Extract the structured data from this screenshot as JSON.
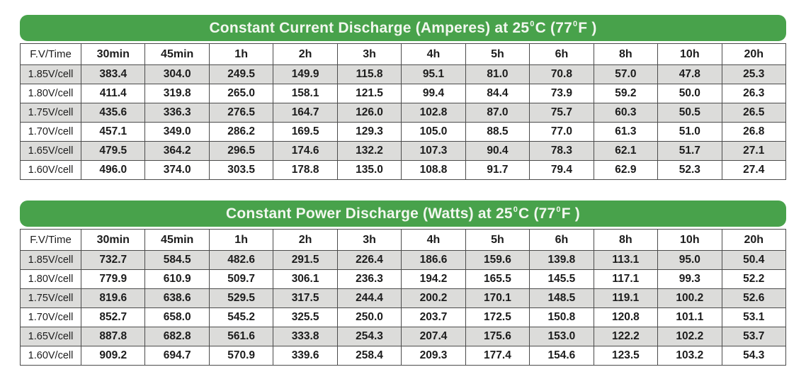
{
  "colors": {
    "title_bar_green": "#48a24b",
    "title_text": "#f2f7ef",
    "row_stripe_gray": "#dcdcda",
    "row_plain": "#ffffff",
    "border_gray": "#4b4b4b",
    "cell_text": "#1c1c1c"
  },
  "tables": [
    {
      "title_parts": {
        "p1": "Constant Current Discharge (Amperes) at 25",
        "sup1": "0",
        "p2": "C (77",
        "sup2": "0",
        "p3": "F )"
      },
      "columns": [
        "F.V/Time",
        "30min",
        "45min",
        "1h",
        "2h",
        "3h",
        "4h",
        "5h",
        "6h",
        "8h",
        "10h",
        "20h"
      ],
      "rows": [
        {
          "label": "1.85V/cell",
          "values": [
            "383.4",
            "304.0",
            "249.5",
            "149.9",
            "115.8",
            "95.1",
            "81.0",
            "70.8",
            "57.0",
            "47.8",
            "25.3"
          ]
        },
        {
          "label": "1.80V/cell",
          "values": [
            "411.4",
            "319.8",
            "265.0",
            "158.1",
            "121.5",
            "99.4",
            "84.4",
            "73.9",
            "59.2",
            "50.0",
            "26.3"
          ]
        },
        {
          "label": "1.75V/cell",
          "values": [
            "435.6",
            "336.3",
            "276.5",
            "164.7",
            "126.0",
            "102.8",
            "87.0",
            "75.7",
            "60.3",
            "50.5",
            "26.5"
          ]
        },
        {
          "label": "1.70V/cell",
          "values": [
            "457.1",
            "349.0",
            "286.2",
            "169.5",
            "129.3",
            "105.0",
            "88.5",
            "77.0",
            "61.3",
            "51.0",
            "26.8"
          ]
        },
        {
          "label": "1.65V/cell",
          "values": [
            "479.5",
            "364.2",
            "296.5",
            "174.6",
            "132.2",
            "107.3",
            "90.4",
            "78.3",
            "62.1",
            "51.7",
            "27.1"
          ]
        },
        {
          "label": "1.60V/cell",
          "values": [
            "496.0",
            "374.0",
            "303.5",
            "178.8",
            "135.0",
            "108.8",
            "91.7",
            "79.4",
            "62.9",
            "52.3",
            "27.4"
          ]
        }
      ]
    },
    {
      "title_parts": {
        "p1": "Constant Power Discharge (Watts) at 25",
        "sup1": "0",
        "p2": "C (77",
        "sup2": "0",
        "p3": "F )"
      },
      "columns": [
        "F.V/Time",
        "30min",
        "45min",
        "1h",
        "2h",
        "3h",
        "4h",
        "5h",
        "6h",
        "8h",
        "10h",
        "20h"
      ],
      "rows": [
        {
          "label": "1.85V/cell",
          "values": [
            "732.7",
            "584.5",
            "482.6",
            "291.5",
            "226.4",
            "186.6",
            "159.6",
            "139.8",
            "113.1",
            "95.0",
            "50.4"
          ]
        },
        {
          "label": "1.80V/cell",
          "values": [
            "779.9",
            "610.9",
            "509.7",
            "306.1",
            "236.3",
            "194.2",
            "165.5",
            "145.5",
            "117.1",
            "99.3",
            "52.2"
          ]
        },
        {
          "label": "1.75V/cell",
          "values": [
            "819.6",
            "638.6",
            "529.5",
            "317.5",
            "244.4",
            "200.2",
            "170.1",
            "148.5",
            "119.1",
            "100.2",
            "52.6"
          ]
        },
        {
          "label": "1.70V/cell",
          "values": [
            "852.7",
            "658.0",
            "545.2",
            "325.5",
            "250.0",
            "203.7",
            "172.5",
            "150.8",
            "120.8",
            "101.1",
            "53.1"
          ]
        },
        {
          "label": "1.65V/cell",
          "values": [
            "887.8",
            "682.8",
            "561.6",
            "333.8",
            "254.3",
            "207.4",
            "175.6",
            "153.0",
            "122.2",
            "102.2",
            "53.7"
          ]
        },
        {
          "label": "1.60V/cell",
          "values": [
            "909.2",
            "694.7",
            "570.9",
            "339.6",
            "258.4",
            "209.3",
            "177.4",
            "154.6",
            "123.5",
            "103.2",
            "54.3"
          ]
        }
      ]
    }
  ]
}
